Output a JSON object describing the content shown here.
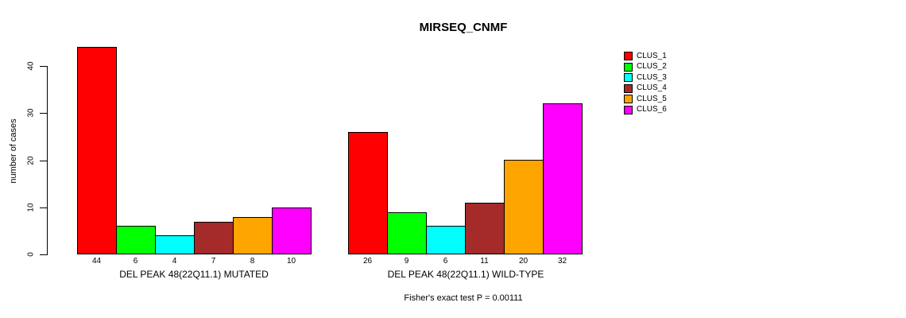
{
  "chart_data": {
    "type": "bar",
    "title": "MIRSEQ_CNMF",
    "ylabel": "number of cases",
    "xlabel": "",
    "ylim": [
      0,
      44
    ],
    "yticks": [
      0,
      10,
      20,
      30,
      40
    ],
    "grid": false,
    "legend_position": "top-right",
    "series_labels": [
      "CLUS_1",
      "CLUS_2",
      "CLUS_3",
      "CLUS_4",
      "CLUS_5",
      "CLUS_6"
    ],
    "colors": [
      "#FF0000",
      "#00FF00",
      "#00FFFF",
      "#A52A2A",
      "#FFA500",
      "#FF00FF"
    ],
    "groups": [
      {
        "label": "DEL PEAK 48(22Q11.1) MUTATED",
        "values": [
          44,
          6,
          4,
          7,
          8,
          10
        ]
      },
      {
        "label": "DEL PEAK 48(22Q11.1) WILD-TYPE",
        "values": [
          26,
          9,
          6,
          11,
          20,
          32
        ]
      }
    ],
    "bar_value_labels_shown": true,
    "annotation": "Fisher's exact test P = 0.00111"
  },
  "colors": {
    "foreground": "#000000",
    "background": "#FFFFFF"
  }
}
